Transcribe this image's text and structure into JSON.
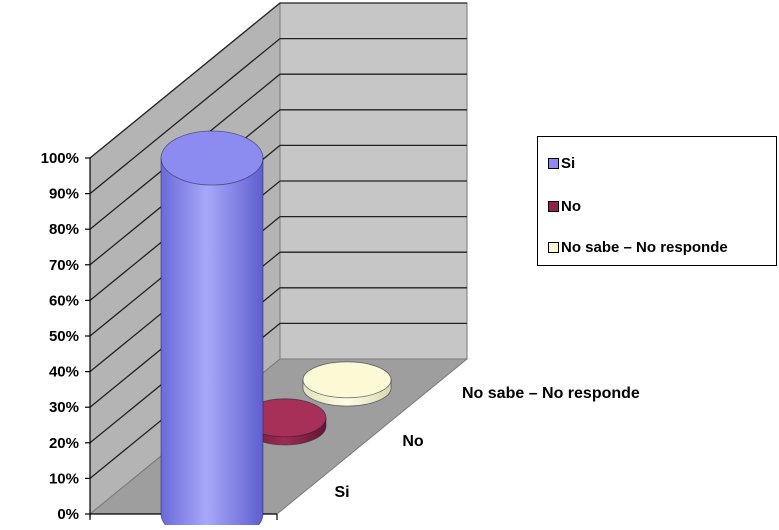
{
  "chart_data": {
    "type": "bar",
    "subtype": "3d-cylinder",
    "title": "",
    "xlabel": "",
    "ylabel": "",
    "categories": [
      "Si",
      "No",
      "No sabe – No responde"
    ],
    "values": [
      100,
      0,
      0
    ],
    "ylim": [
      0,
      100
    ],
    "y_ticks": [
      "0%",
      "10%",
      "20%",
      "30%",
      "40%",
      "50%",
      "60%",
      "70%",
      "80%",
      "90%",
      "100%"
    ],
    "grid": true,
    "legend_position": "right",
    "legend": [
      "Si",
      "No",
      "No sabe – No responde"
    ],
    "colors": [
      "#8C8CF0",
      "#8E2447",
      "#FBFAD4"
    ]
  }
}
